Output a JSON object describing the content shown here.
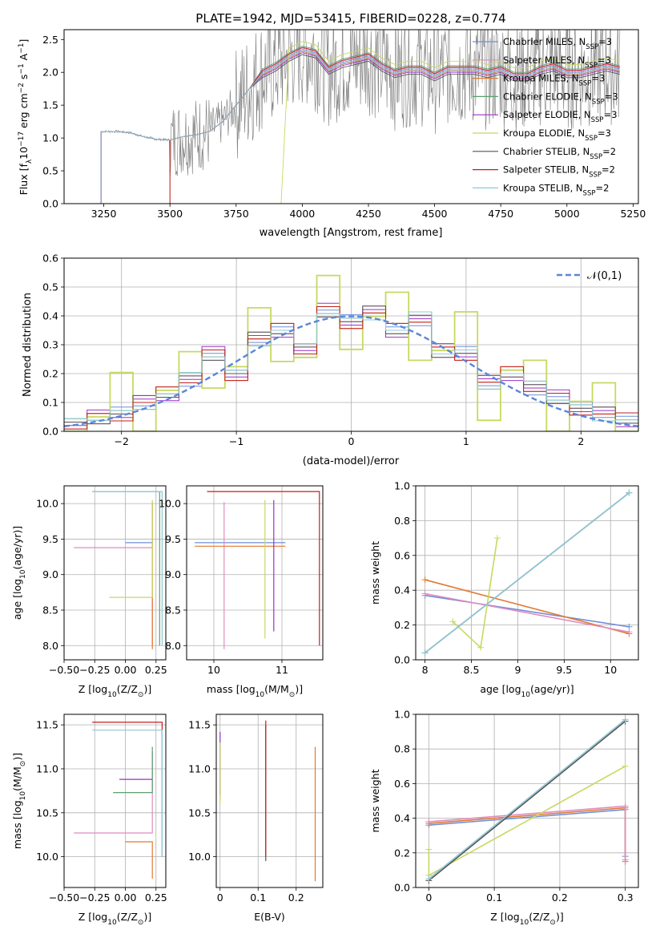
{
  "legend_entries": [
    {
      "label": "Chabrier MILES, N",
      "sub": "SSP",
      "suffix": "=3",
      "color": "#6f8fd8"
    },
    {
      "label": "Salpeter MILES, N",
      "sub": "SSP",
      "suffix": "=3",
      "color": "#e08cc0"
    },
    {
      "label": "Kroupa MILES, N",
      "sub": "SSP",
      "suffix": "=3",
      "color": "#e07a30"
    },
    {
      "label": "Chabrier ELODIE, N",
      "sub": "SSP",
      "suffix": "=3",
      "color": "#5aa070"
    },
    {
      "label": "Salpeter ELODIE, N",
      "sub": "SSP",
      "suffix": "=3",
      "color": "#9b30c8"
    },
    {
      "label": "Kroupa ELODIE, N",
      "sub": "SSP",
      "suffix": "=3",
      "color": "#c8d860"
    },
    {
      "label": "Chabrier STELIB, N",
      "sub": "SSP",
      "suffix": "=2",
      "color": "#555555"
    },
    {
      "label": "Salpeter STELIB, N",
      "sub": "SSP",
      "suffix": "=2",
      "color": "#c02020"
    },
    {
      "label": "Kroupa STELIB, N",
      "sub": "SSP",
      "suffix": "=2",
      "color": "#90c8d8"
    }
  ],
  "chart_data": [
    {
      "type": "line",
      "title": "PLATE=1942, MJD=53415, FIBERID=0228, z=0.774",
      "xlabel": "wavelength [Angstrom, rest frame]",
      "ylabel_parts": [
        "Flux [f",
        "λ",
        "10",
        "−17",
        " erg cm",
        "−2",
        " s",
        "−1",
        " A",
        "−1",
        "]"
      ],
      "xlim": [
        3100,
        5270
      ],
      "ylim": [
        0,
        2.65
      ],
      "xticks": [
        3250,
        3500,
        3750,
        4000,
        4250,
        4500,
        4750,
        5000,
        5250
      ],
      "yticks": [
        0.0,
        0.5,
        1.0,
        1.5,
        2.0,
        2.5
      ],
      "series": [
        {
          "name": "model",
          "x": [
            3240,
            3300,
            3350,
            3400,
            3450,
            3500,
            3550,
            3600,
            3650,
            3700,
            3750,
            3800,
            3850,
            3900,
            3950,
            4000,
            4050,
            4100,
            4150,
            4200,
            4250,
            4300,
            4350,
            4400,
            4450,
            4500,
            4550,
            4600,
            4650,
            4700,
            4750,
            4800,
            4850,
            4900,
            4950,
            5000,
            5050,
            5100,
            5150,
            5200
          ],
          "y": [
            1.1,
            1.1,
            1.08,
            1.02,
            0.98,
            0.97,
            1.02,
            1.05,
            1.1,
            1.25,
            1.5,
            1.75,
            2.0,
            2.1,
            2.25,
            2.35,
            2.3,
            2.05,
            2.15,
            2.2,
            2.25,
            2.1,
            2.0,
            2.05,
            2.05,
            1.95,
            2.05,
            2.05,
            2.05,
            2.0,
            2.05,
            1.95,
            1.95,
            2.05,
            2.1,
            2.0,
            2.0,
            2.05,
            2.1,
            2.05
          ]
        }
      ]
    },
    {
      "type": "bar",
      "xlabel": "(data-model)/error",
      "ylabel": "Normed distribution",
      "xlim": [
        -2.5,
        2.5
      ],
      "ylim": [
        0,
        0.6
      ],
      "xticks": [
        -2,
        -1,
        0,
        1,
        2
      ],
      "yticks": [
        0.0,
        0.1,
        0.2,
        0.3,
        0.4,
        0.5,
        0.6
      ],
      "legend_label": "𝒩(0,1)",
      "series": [
        {
          "name": "histogram",
          "x": [
            -2.4,
            -2.2,
            -2.0,
            -1.8,
            -1.6,
            -1.4,
            -1.2,
            -1.0,
            -0.8,
            -0.6,
            -0.4,
            -0.2,
            0.0,
            0.2,
            0.4,
            0.6,
            0.8,
            1.0,
            1.2,
            1.4,
            1.6,
            1.8,
            2.0,
            2.2,
            2.4
          ],
          "values": [
            0.02,
            0.05,
            0.06,
            0.1,
            0.13,
            0.18,
            0.27,
            0.2,
            0.32,
            0.35,
            0.28,
            0.42,
            0.38,
            0.41,
            0.35,
            0.39,
            0.28,
            0.27,
            0.17,
            0.2,
            0.15,
            0.12,
            0.08,
            0.06,
            0.04
          ]
        }
      ]
    },
    {
      "type": "line",
      "xlabel_parts": [
        "Z [log",
        "10",
        "(Z/Z",
        "⊙",
        ")]"
      ],
      "ylabel_parts": [
        "age  [log",
        "10",
        "(age/yr)]"
      ],
      "xlim": [
        -0.5,
        0.33
      ],
      "ylim": [
        7.8,
        10.25
      ],
      "xticks": [
        -0.5,
        -0.25,
        0.0,
        0.25
      ],
      "xticklabels": [
        "−0.50",
        "−0.25",
        "0.00",
        "0.25"
      ],
      "yticks": [
        8.0,
        8.5,
        9.0,
        9.5,
        10.0
      ],
      "series": [
        {
          "name": "Chabrier MILES",
          "x": [
            0.0,
            0.22,
            0.22
          ],
          "y": [
            9.45,
            9.45,
            10.02
          ]
        },
        {
          "name": "Salpeter MILES",
          "x": [
            -0.42,
            0.22,
            0.22
          ],
          "y": [
            9.38,
            9.38,
            8.0
          ]
        },
        {
          "name": "Kroupa MILES",
          "x": [
            0.22,
            0.22
          ],
          "y": [
            7.95,
            10.0
          ]
        },
        {
          "name": "Chabrier ELODIE",
          "x": [
            -0.27,
            0.28,
            0.28
          ],
          "y": [
            10.17,
            10.17,
            8.0
          ]
        },
        {
          "name": "Kroupa ELODIE",
          "x": [
            -0.13,
            0.22,
            0.22
          ],
          "y": [
            8.68,
            8.68,
            10.05
          ]
        },
        {
          "name": "Kroupa STELIB",
          "x": [
            -0.27,
            0.3,
            0.3
          ],
          "y": [
            10.17,
            10.17,
            8.0
          ]
        }
      ]
    },
    {
      "type": "line",
      "xlabel_parts": [
        "mass [log",
        "10",
        "(M/M",
        "⊙",
        ")]"
      ],
      "xlim": [
        9.6,
        11.6
      ],
      "ylim": [
        7.8,
        10.25
      ],
      "xticks": [
        10,
        11
      ],
      "yticks": [
        8.0,
        8.5,
        9.0,
        9.5,
        10.0
      ],
      "series": [
        {
          "name": "Chabrier MILES",
          "x": [
            9.72,
            11.05
          ],
          "y": [
            9.45,
            9.45
          ]
        },
        {
          "name": "Salpeter MILES",
          "x": [
            10.15,
            10.15
          ],
          "y": [
            7.95,
            10.02
          ]
        },
        {
          "name": "Kroupa MILES",
          "x": [
            9.72,
            11.05
          ],
          "y": [
            9.4,
            9.4
          ]
        },
        {
          "name": "Salpeter ELODIE",
          "x": [
            10.88,
            10.88
          ],
          "y": [
            8.2,
            10.05
          ]
        },
        {
          "name": "Kroupa ELODIE",
          "x": [
            10.75,
            10.75
          ],
          "y": [
            8.1,
            10.05
          ]
        },
        {
          "name": "Salpeter STELIB",
          "x": [
            9.9,
            11.55,
            11.55
          ],
          "y": [
            10.17,
            10.17,
            8.0
          ]
        }
      ]
    },
    {
      "type": "line",
      "xlabel_parts": [
        "age  [log",
        "10",
        "(age/yr)]"
      ],
      "ylabel": "mass weight",
      "xlim": [
        7.9,
        10.3
      ],
      "ylim": [
        0,
        1.0
      ],
      "xticks": [
        8.0,
        8.5,
        9.0,
        9.5,
        10.0
      ],
      "yticks": [
        0.0,
        0.2,
        0.4,
        0.6,
        0.8,
        1.0
      ],
      "series": [
        {
          "name": "Chabrier MILES",
          "x": [
            8.0,
            10.2
          ],
          "y": [
            0.37,
            0.19
          ]
        },
        {
          "name": "Kroupa MILES",
          "x": [
            8.0,
            10.2
          ],
          "y": [
            0.46,
            0.15
          ]
        },
        {
          "name": "Salpeter MILES",
          "x": [
            8.0,
            10.2
          ],
          "y": [
            0.38,
            0.16
          ]
        },
        {
          "name": "Kroupa ELODIE",
          "x": [
            8.3,
            8.6,
            8.78
          ],
          "y": [
            0.22,
            0.07,
            0.7
          ]
        },
        {
          "name": "Chabrier STELIB",
          "x": [
            8.0,
            10.2
          ],
          "y": [
            0.04,
            0.96
          ]
        },
        {
          "name": "Kroupa STELIB",
          "x": [
            8.0,
            10.2
          ],
          "y": [
            0.04,
            0.96
          ]
        }
      ]
    },
    {
      "type": "line",
      "xlabel_parts": [
        "Z [log",
        "10",
        "(Z/Z",
        "⊙",
        ")]"
      ],
      "ylabel_parts": [
        "mass [log",
        "10",
        "(M/M",
        "⊙",
        ")]"
      ],
      "xlim": [
        -0.5,
        0.33
      ],
      "ylim": [
        9.65,
        11.62
      ],
      "xticks": [
        -0.5,
        -0.25,
        0.0,
        0.25
      ],
      "xticklabels": [
        "−0.50",
        "−0.25",
        "0.00",
        "0.25"
      ],
      "yticks": [
        10.0,
        10.5,
        11.0,
        11.5
      ],
      "series": [
        {
          "name": "Salpeter MILES",
          "x": [
            -0.42,
            0.22,
            0.22
          ],
          "y": [
            10.27,
            10.27,
            11.2
          ]
        },
        {
          "name": "Kroupa MILES",
          "x": [
            0.0,
            0.22,
            0.22
          ],
          "y": [
            10.17,
            10.17,
            9.75
          ]
        },
        {
          "name": "Chabrier ELODIE",
          "x": [
            -0.1,
            0.22,
            0.22
          ],
          "y": [
            10.73,
            10.73,
            11.25
          ]
        },
        {
          "name": "Salpeter ELODIE",
          "x": [
            -0.05,
            0.22
          ],
          "y": [
            10.88,
            10.88
          ]
        },
        {
          "name": "Salpeter STELIB",
          "x": [
            -0.27,
            0.3,
            0.3
          ],
          "y": [
            11.53,
            11.53,
            10.0
          ]
        },
        {
          "name": "Kroupa STELIB",
          "x": [
            -0.27,
            0.3,
            0.3
          ],
          "y": [
            11.44,
            11.44,
            10.0
          ]
        }
      ]
    },
    {
      "type": "line",
      "xlabel": "E(B-V)",
      "xlim": [
        -0.01,
        0.27
      ],
      "ylim": [
        9.65,
        11.62
      ],
      "xticks": [
        0.0,
        0.1,
        0.2
      ],
      "yticks": [
        10.0,
        10.5,
        11.0,
        11.5
      ],
      "series": [
        {
          "name": "Salpeter ELODIE",
          "x": [
            0.0,
            0.0
          ],
          "y": [
            10.7,
            11.42
          ]
        },
        {
          "name": "Kroupa ELODIE",
          "x": [
            0.0,
            0.0
          ],
          "y": [
            10.6,
            11.3
          ]
        },
        {
          "name": "Chabrier STELIB",
          "x": [
            0.12,
            0.12
          ],
          "y": [
            9.95,
            11.5
          ]
        },
        {
          "name": "Salpeter STELIB",
          "x": [
            0.12,
            0.12
          ],
          "y": [
            10.0,
            11.55
          ]
        },
        {
          "name": "Kroupa MILES",
          "x": [
            0.25,
            0.25
          ],
          "y": [
            9.72,
            11.25
          ]
        }
      ]
    },
    {
      "type": "line",
      "xlabel_parts": [
        "Z [log",
        "10",
        "(Z/Z",
        "⊙",
        ")]"
      ],
      "ylabel": "mass weight",
      "xlim": [
        -0.02,
        0.32
      ],
      "ylim": [
        0,
        1.0
      ],
      "xticks": [
        0.0,
        0.1,
        0.2,
        0.3
      ],
      "yticks": [
        0.0,
        0.2,
        0.4,
        0.6,
        0.8,
        1.0
      ],
      "series": [
        {
          "name": "Chabrier MILES",
          "x": [
            0.0,
            0.3,
            0.3
          ],
          "y": [
            0.36,
            0.45,
            0.18
          ]
        },
        {
          "name": "Kroupa MILES",
          "x": [
            0.0,
            0.3,
            0.3
          ],
          "y": [
            0.37,
            0.46,
            0.15
          ]
        },
        {
          "name": "Salpeter MILES",
          "x": [
            0.0,
            0.3,
            0.3
          ],
          "y": [
            0.38,
            0.47,
            0.16
          ]
        },
        {
          "name": "Kroupa ELODIE",
          "x": [
            0.0,
            0.0,
            0.3
          ],
          "y": [
            0.22,
            0.07,
            0.7
          ]
        },
        {
          "name": "Chabrier STELIB",
          "x": [
            0.0,
            0.3
          ],
          "y": [
            0.04,
            0.96
          ]
        },
        {
          "name": "Kroupa STELIB",
          "x": [
            0.0,
            0.3
          ],
          "y": [
            0.05,
            0.97
          ]
        }
      ]
    }
  ]
}
